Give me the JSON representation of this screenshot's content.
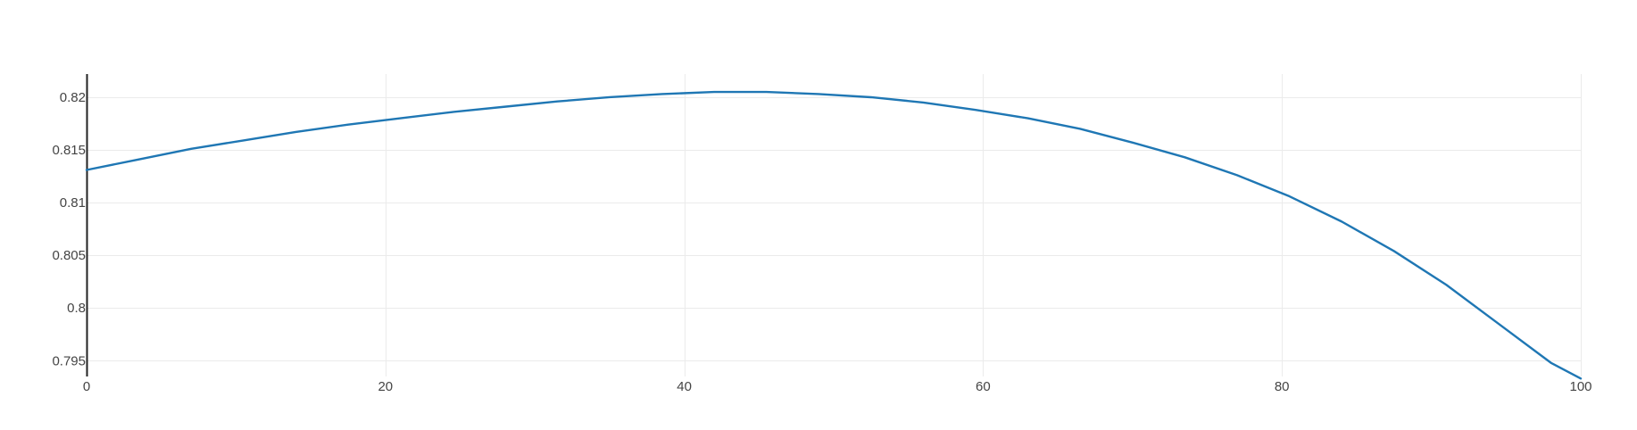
{
  "chart_data": {
    "type": "line",
    "title": "",
    "xlabel": "",
    "ylabel": "",
    "xlim": [
      0,
      100
    ],
    "ylim": [
      0.7935,
      0.8222
    ],
    "x_ticks": [
      0,
      20,
      40,
      60,
      80,
      100
    ],
    "y_ticks": [
      0.795,
      0.8,
      0.805,
      0.81,
      0.815,
      0.82
    ],
    "x_tick_labels": [
      "0",
      "20",
      "40",
      "60",
      "80",
      "100"
    ],
    "y_tick_labels": [
      "0.795",
      "0.8",
      "0.805",
      "0.81",
      "0.815",
      "0.82"
    ],
    "grid": true,
    "legend": "none",
    "colors": {
      "line": "#1f77b4",
      "grid": "#ebebeb",
      "axis": "#222222"
    },
    "series": [
      {
        "x": [
          0,
          3.5,
          7,
          10.5,
          14,
          17.5,
          21,
          24.5,
          28,
          31.5,
          35,
          38.5,
          42,
          45.5,
          49,
          52.5,
          56,
          59.5,
          63,
          66.5,
          70,
          73.5,
          77,
          80.5,
          84,
          87.5,
          91,
          94.5,
          98,
          100
        ],
        "y": [
          0.8131,
          0.8141,
          0.8151,
          0.8159,
          0.8167,
          0.8174,
          0.818,
          0.8186,
          0.8191,
          0.8196,
          0.82,
          0.8203,
          0.8205,
          0.8205,
          0.8203,
          0.82,
          0.8195,
          0.8188,
          0.818,
          0.817,
          0.8157,
          0.8143,
          0.8126,
          0.8106,
          0.8082,
          0.8054,
          0.8022,
          0.7985,
          0.7948,
          0.7933
        ]
      }
    ]
  }
}
